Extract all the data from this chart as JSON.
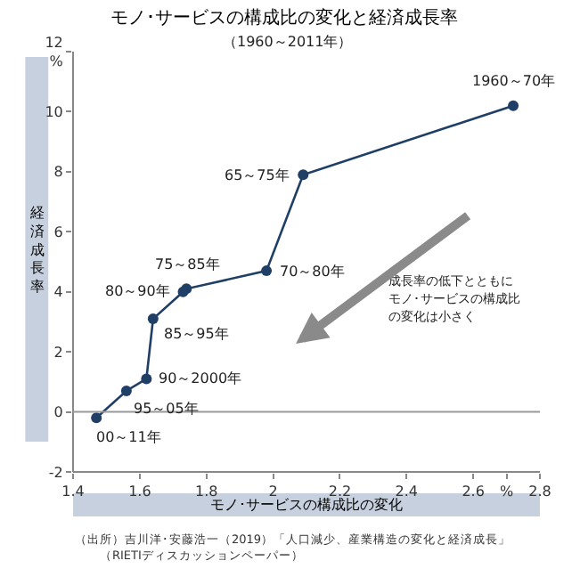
{
  "chart_data": {
    "type": "line",
    "title": "モノ･サービスの構成比の変化と経済成長率",
    "subtitle": "（1960～2011年）",
    "xlabel": "モノ･サービスの構成比の変化",
    "ylabel": "経済成長率",
    "series": [
      {
        "color": "#1f3f66",
        "x": [
          2.72,
          2.09,
          1.98,
          1.74,
          1.73,
          1.64,
          1.62,
          1.56,
          1.47
        ],
        "values": [
          10.2,
          7.9,
          4.7,
          4.1,
          4.0,
          3.1,
          1.1,
          0.7,
          -0.2
        ]
      }
    ],
    "xlim": [
      1.4,
      2.8
    ],
    "ylim": [
      -2,
      12
    ],
    "xticks": [
      1.4,
      1.6,
      1.8,
      2.0,
      2.2,
      2.4,
      2.6,
      {
        "value": 2.7,
        "label": "%"
      },
      2.8
    ],
    "yticks": [
      -2,
      0,
      2,
      4,
      6,
      8,
      10,
      {
        "value": 12,
        "label": "12\n%"
      }
    ],
    "ref_lines": [
      {
        "axis": "y",
        "value": 0,
        "color": "#999999"
      }
    ],
    "marker": "circle",
    "line_style": "solid",
    "annotations": [
      {
        "text": "1960～70年",
        "x": 2.72,
        "y": 10.2
      },
      {
        "text": "65～75年",
        "x": 2.09,
        "y": 7.9
      },
      {
        "text": "70～80年",
        "x": 1.98,
        "y": 4.7
      },
      {
        "text": "75～85年",
        "x": 1.74,
        "y": 4.1
      },
      {
        "text": "80～90年",
        "x": 1.73,
        "y": 4.0
      },
      {
        "text": "85～95年",
        "x": 1.64,
        "y": 3.1
      },
      {
        "text": "90～2000年",
        "x": 1.62,
        "y": 1.1
      },
      {
        "text": "95～05年",
        "x": 1.56,
        "y": 0.7
      },
      {
        "text": "00～11年",
        "x": 1.47,
        "y": -0.2
      },
      "成長率の低下とともに",
      "モノ･サービスの構成比",
      "の変化は小さく",
      "（出所）吉川洋･安藤浩一（2019）「人口減少、産業構造の変化と経済成長」",
      "（RIETIディスカッションペーパー）"
    ]
  }
}
